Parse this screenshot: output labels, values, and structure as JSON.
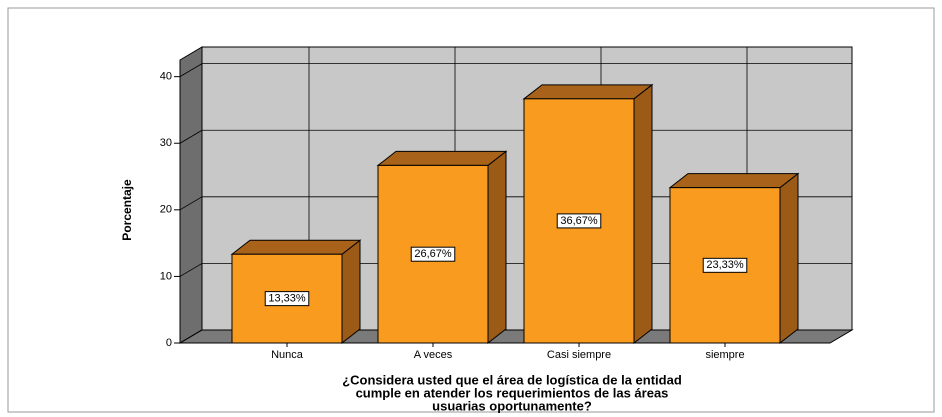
{
  "chart_data": {
    "type": "bar3d",
    "categories": [
      "Nunca",
      "A veces",
      "Casi siempre",
      "siempre"
    ],
    "values": [
      13.33,
      26.67,
      36.67,
      23.33
    ],
    "value_labels": [
      "13,33%",
      "26,67%",
      "36,67%",
      "23,33%"
    ],
    "color": "#f99b1f",
    "ylabel": "Porcentaje",
    "xlabel": [
      "¿Considera usted que el área de logística de la entidad",
      "cumple en atender los requerimientos de las áreas",
      "usuarias oportunamente?"
    ],
    "ylim": [
      0,
      42.5
    ],
    "yticks": [
      0,
      10,
      20,
      30,
      40
    ],
    "grid": true
  }
}
